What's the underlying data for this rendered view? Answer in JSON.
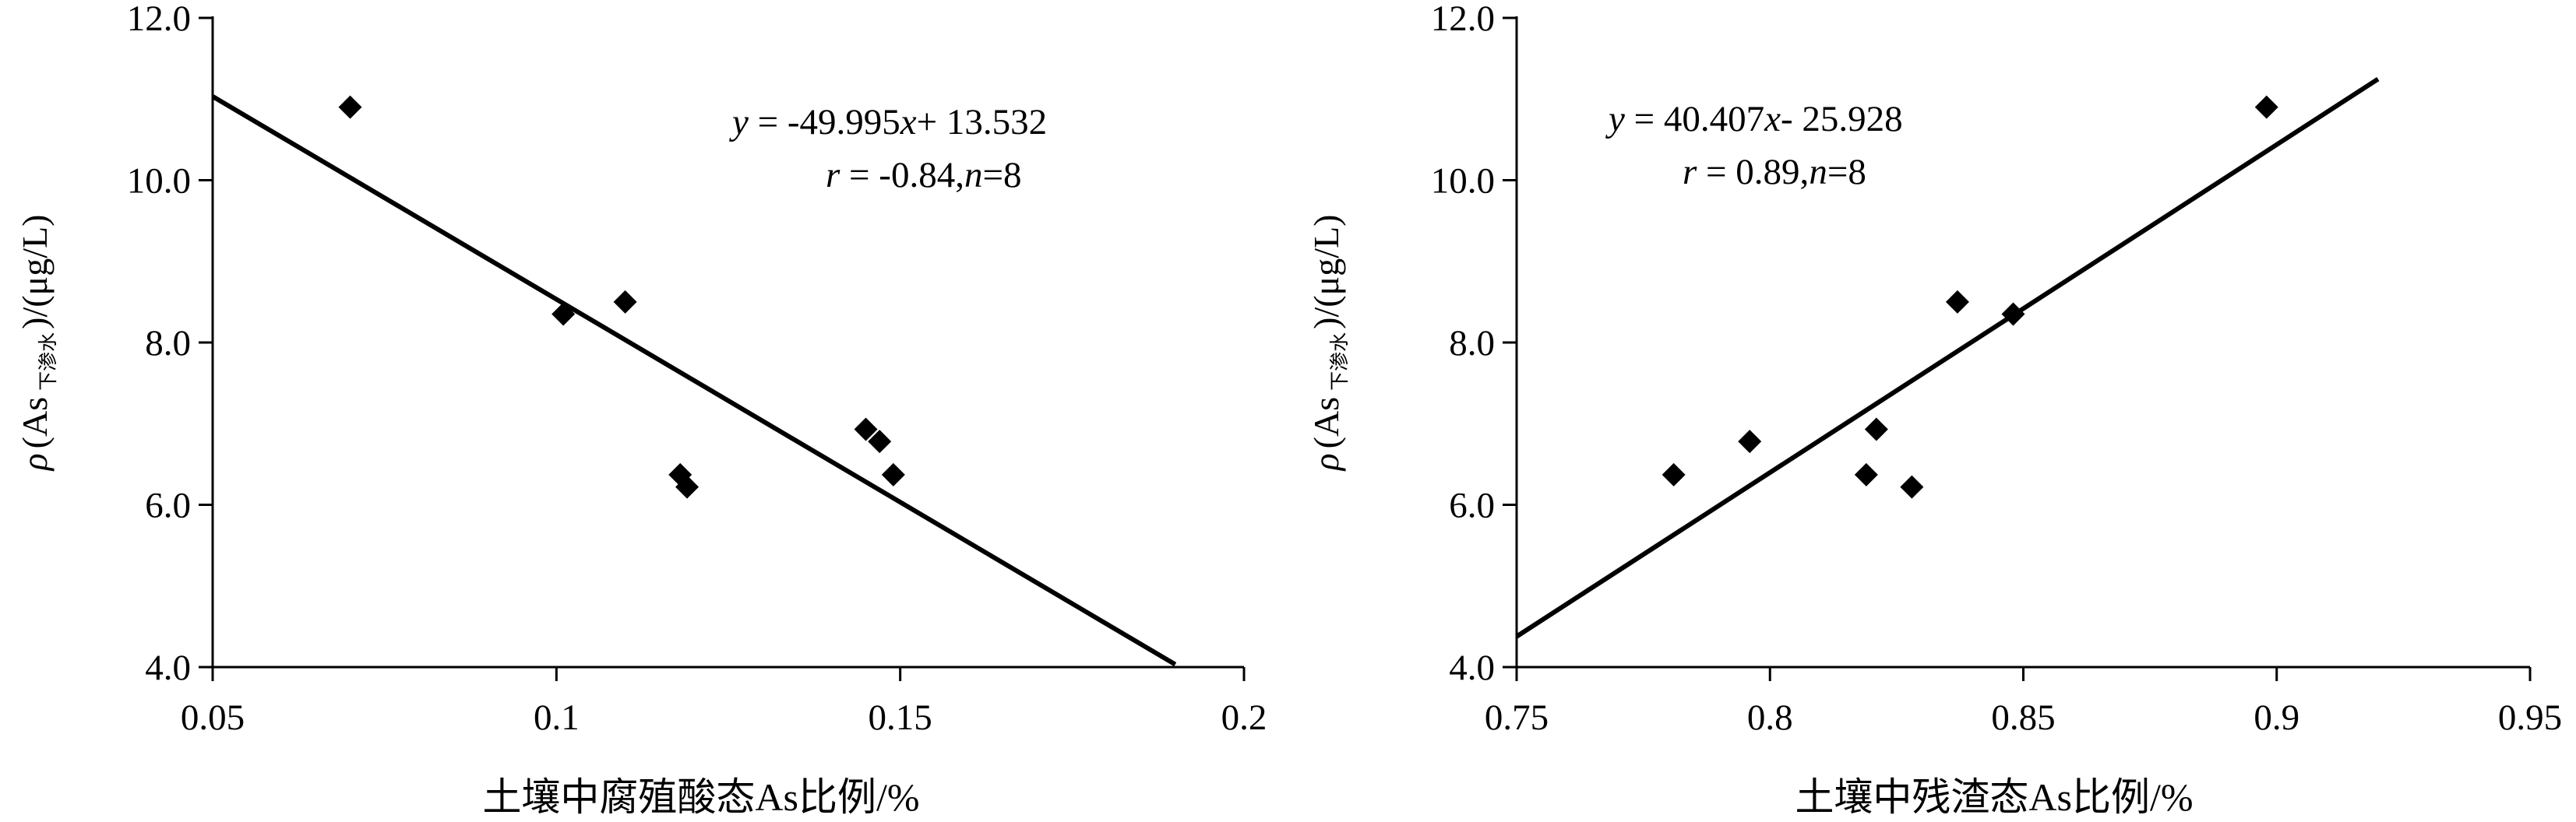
{
  "chart_data": [
    {
      "type": "scatter",
      "title": "",
      "xlabel": "土壤中腐殖酸态As比例/%",
      "ylabel": {
        "rho": "ρ",
        "open": "(As",
        "sub": "下渗水",
        "close": ")/(μg/L)"
      },
      "xlim": [
        0.05,
        0.2
      ],
      "ylim": [
        4.0,
        12.0
      ],
      "xticks": [
        "0.05",
        "0.1",
        "0.15",
        "0.2"
      ],
      "yticks": [
        "4.0",
        "6.0",
        "8.0",
        "10.0",
        "12.0"
      ],
      "x": [
        0.07,
        0.101,
        0.11,
        0.118,
        0.119,
        0.145,
        0.147,
        0.149
      ],
      "y": [
        10.9,
        8.35,
        8.5,
        6.37,
        6.22,
        6.93,
        6.78,
        6.37
      ],
      "fit": {
        "slope": -49.995,
        "intercept": 13.532,
        "x_range": [
          0.05,
          0.19
        ]
      },
      "annotation": {
        "eq_lhs": "y",
        "eq_rhs": " = -49.995",
        "eq_var": "x",
        "eq_tail": "+ 13.532",
        "r_var": "r",
        "r_val": " = -0.84,",
        "n_var": "n",
        "n_val": "=8"
      }
    },
    {
      "type": "scatter",
      "title": "",
      "xlabel": "土壤中残渣态As比例/%",
      "ylabel": {
        "rho": "ρ",
        "open": "(As",
        "sub": "下渗水",
        "close": ")/(μg/L)"
      },
      "xlim": [
        0.75,
        0.95
      ],
      "ylim": [
        4.0,
        12.0
      ],
      "xticks": [
        "0.75",
        "0.8",
        "0.85",
        "0.9",
        "0.95"
      ],
      "yticks": [
        "4.0",
        "6.0",
        "8.0",
        "10.0",
        "12.0"
      ],
      "x": [
        0.781,
        0.796,
        0.819,
        0.821,
        0.828,
        0.837,
        0.848,
        0.898
      ],
      "y": [
        6.37,
        6.78,
        6.37,
        6.93,
        6.22,
        8.5,
        8.35,
        10.9
      ],
      "fit": {
        "slope": 40.407,
        "intercept": -25.928,
        "x_range": [
          0.75,
          0.92
        ]
      },
      "annotation": {
        "eq_lhs": "y",
        "eq_rhs": " = 40.407",
        "eq_var": "x",
        "eq_tail": "- 25.928",
        "r_var": "r",
        "r_val": " = 0.89,",
        "n_var": "n",
        "n_val": "=8"
      }
    }
  ]
}
